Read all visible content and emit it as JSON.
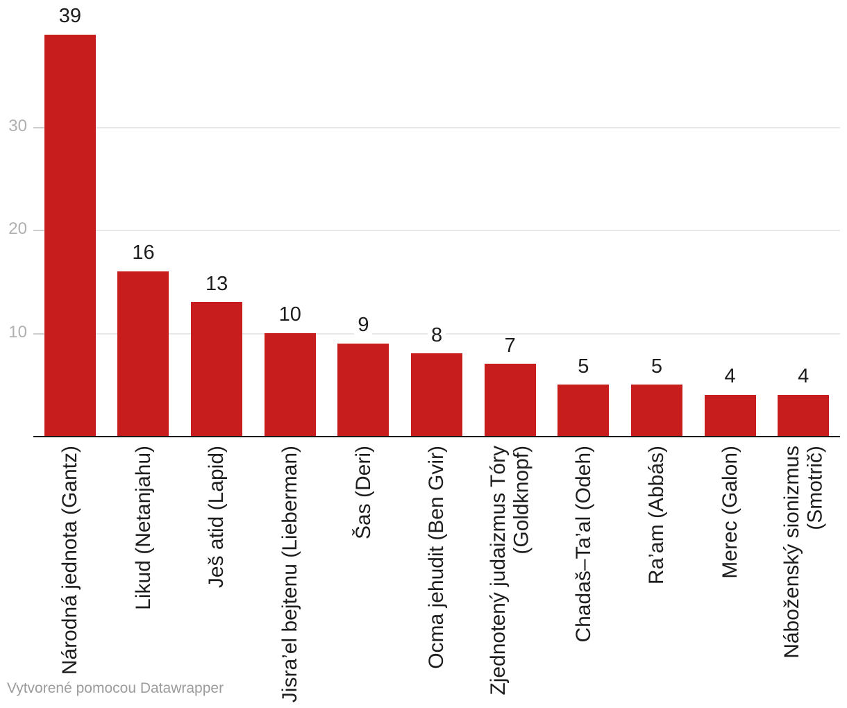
{
  "chart_data": {
    "type": "bar",
    "categories": [
      "Národná jednota (Gantz)",
      "Likud (Netanjahu)",
      "Ješ atid (Lapid)",
      "Jisra’el bejtenu (Lieberman)",
      "Šas (Deri)",
      "Ocma jehudit (Ben Gvir)",
      "Zjednotený judaizmus Tóry\n(Goldknopf)",
      "Chadaš–Ta’al (Odeh)",
      "Ra’am (Abbás)",
      "Merec (Galon)",
      "Náboženský sionizmus\n(Smotrič)"
    ],
    "values": [
      39,
      16,
      13,
      10,
      9,
      8,
      7,
      5,
      5,
      4,
      4
    ],
    "title": "",
    "xlabel": "",
    "ylabel": "",
    "ylim": [
      0,
      42
    ],
    "yticks": [
      10,
      20,
      30
    ],
    "grid": "horizontal",
    "legend": "none",
    "bar_color": "#c71e1d"
  },
  "colors": {
    "bar": "#c71e1d",
    "value_label": "#1d1d1d",
    "category_label": "#1d1d1d",
    "tick_label": "#b0b0b0",
    "gridline": "#e8e8e8",
    "axis_line": "#1a1a1a",
    "footer_text": "#9c9c9c",
    "background": "#ffffff"
  },
  "footer": {
    "attribution": "Vytvorené pomocou Datawrapper"
  }
}
